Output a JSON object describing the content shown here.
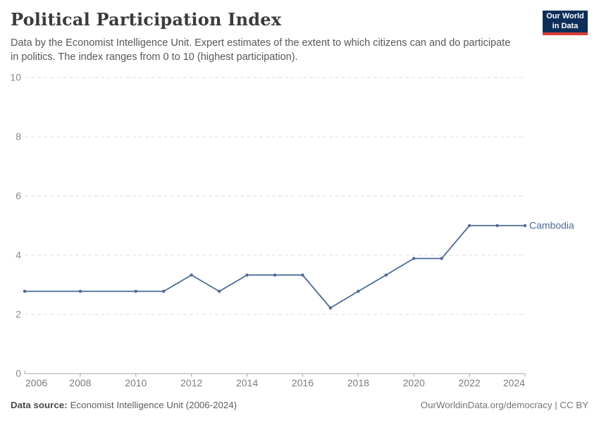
{
  "header": {
    "title": "Political Participation Index",
    "subtitle_lines": [
      "Data by the Economist Intelligence Unit. Expert estimates of the extent to which citizens can and do participate",
      "in politics. The index ranges from 0 to 10 (highest participation)."
    ],
    "logo_line1": "Our World",
    "logo_line2": "in Data"
  },
  "chart_data": {
    "type": "line",
    "title": "Political Participation Index",
    "xlabel": "",
    "ylabel": "",
    "xlim": [
      2006,
      2024
    ],
    "ylim": [
      0,
      10
    ],
    "x_ticks": [
      2006,
      2008,
      2010,
      2012,
      2014,
      2016,
      2018,
      2020,
      2022,
      2024
    ],
    "y_ticks": [
      0,
      2,
      4,
      6,
      8,
      10
    ],
    "grid": "horizontal-dashed",
    "legend_position": "end-of-line-label",
    "series": [
      {
        "name": "Cambodia",
        "color": "#4C6A9C",
        "x": [
          2006,
          2008,
          2010,
          2011,
          2012,
          2013,
          2014,
          2015,
          2016,
          2017,
          2018,
          2019,
          2020,
          2021,
          2022,
          2023,
          2024
        ],
        "values": [
          2.78,
          2.78,
          2.78,
          2.78,
          3.33,
          2.78,
          3.33,
          3.33,
          3.33,
          2.22,
          2.78,
          3.33,
          3.89,
          3.89,
          5,
          5,
          5
        ]
      }
    ]
  },
  "colors": {
    "line": "#4C6A9C",
    "gridline": "#dcdcdc",
    "axis": "#a6a6a6",
    "y_tick_label": "#8a8a8a",
    "x_tick_label": "#7b7b7b",
    "logo_navy": "#0d2e5a",
    "logo_red": "#dc3d33"
  },
  "footer": {
    "datasource_label": "Data source:",
    "datasource_value": "Economist Intelligence Unit (2006-2024)",
    "credit_link": "OurWorldinData.org/democracy",
    "credit_sep": " | ",
    "license": "CC BY"
  }
}
